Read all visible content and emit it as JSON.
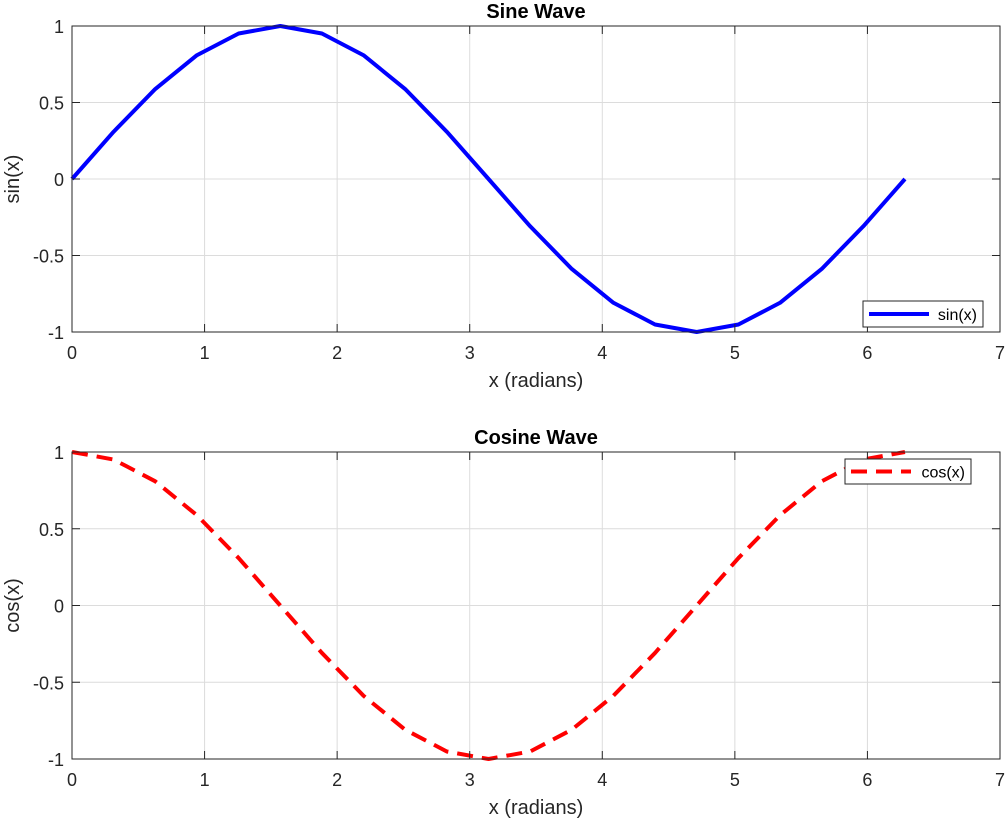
{
  "chart_data": [
    {
      "type": "line",
      "title": "Sine Wave",
      "xlabel": "x (radians)",
      "ylabel": "sin(x)",
      "xlim": [
        0,
        7
      ],
      "ylim": [
        -1,
        1
      ],
      "xticks": [
        "0",
        "1",
        "2",
        "3",
        "4",
        "5",
        "6",
        "7"
      ],
      "yticks": [
        "-1",
        "-0.5",
        "0",
        "0.5",
        "1"
      ],
      "grid": true,
      "legend_position": "bottom-right",
      "series": [
        {
          "name": "sin(x)",
          "color": "#0000ff",
          "line_style": "solid",
          "x": [
            0,
            0.314,
            0.628,
            0.942,
            1.257,
            1.571,
            1.885,
            2.199,
            2.513,
            2.827,
            3.142,
            3.456,
            3.77,
            4.084,
            4.398,
            4.712,
            5.027,
            5.341,
            5.655,
            5.969,
            6.283
          ],
          "y": [
            0,
            0.309,
            0.588,
            0.809,
            0.951,
            1.0,
            0.951,
            0.809,
            0.588,
            0.309,
            0,
            -0.309,
            -0.588,
            -0.809,
            -0.951,
            -1.0,
            -0.951,
            -0.809,
            -0.588,
            -0.309,
            0
          ]
        }
      ]
    },
    {
      "type": "line",
      "title": "Cosine Wave",
      "xlabel": "x (radians)",
      "ylabel": "cos(x)",
      "xlim": [
        0,
        7
      ],
      "ylim": [
        -1,
        1
      ],
      "xticks": [
        "0",
        "1",
        "2",
        "3",
        "4",
        "5",
        "6",
        "7"
      ],
      "yticks": [
        "-1",
        "-0.5",
        "0",
        "0.5",
        "1"
      ],
      "grid": true,
      "legend_position": "top-right",
      "series": [
        {
          "name": "cos(x)",
          "color": "#ff0000",
          "line_style": "dashed",
          "x": [
            0,
            0.314,
            0.628,
            0.942,
            1.257,
            1.571,
            1.885,
            2.199,
            2.513,
            2.827,
            3.142,
            3.456,
            3.77,
            4.084,
            4.398,
            4.712,
            5.027,
            5.341,
            5.655,
            5.969,
            6.283
          ],
          "y": [
            1.0,
            0.951,
            0.809,
            0.588,
            0.309,
            0,
            -0.309,
            -0.588,
            -0.809,
            -0.951,
            -1.0,
            -0.951,
            -0.809,
            -0.588,
            -0.309,
            0,
            0.309,
            0.588,
            0.809,
            0.951,
            1.0
          ]
        }
      ]
    }
  ]
}
